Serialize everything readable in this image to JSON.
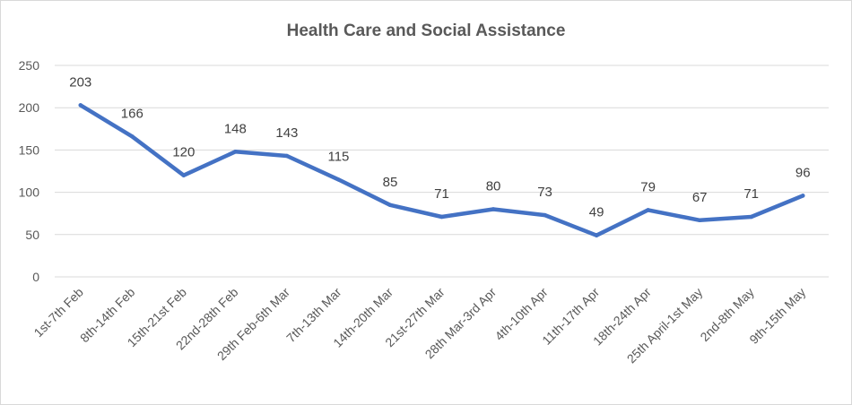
{
  "chart_data": {
    "type": "line",
    "title": "Health Care and Social Assistance",
    "xlabel": "",
    "ylabel": "",
    "ylim": [
      0,
      250
    ],
    "yticks": [
      0,
      50,
      100,
      150,
      200,
      250
    ],
    "grid": true,
    "legend": "none",
    "categories": [
      "1st-7th Feb",
      "8th-14th Feb",
      "15th-21st Feb",
      "22nd-28th Feb",
      "29th Feb-6th Mar",
      "7th-13th Mar",
      "14th-20th Mar",
      "21st-27th Mar",
      "28th Mar-3rd Apr",
      "4th-10th Apr",
      "11th-17th Apr",
      "18th-24th Apr",
      "25th April-1st May",
      "2nd-8th May",
      "9th-15th May"
    ],
    "series": [
      {
        "values": [
          203,
          166,
          120,
          148,
          143,
          115,
          85,
          71,
          80,
          73,
          49,
          79,
          67,
          71,
          96
        ],
        "color": "#4472c4"
      }
    ],
    "data_labels": true
  }
}
